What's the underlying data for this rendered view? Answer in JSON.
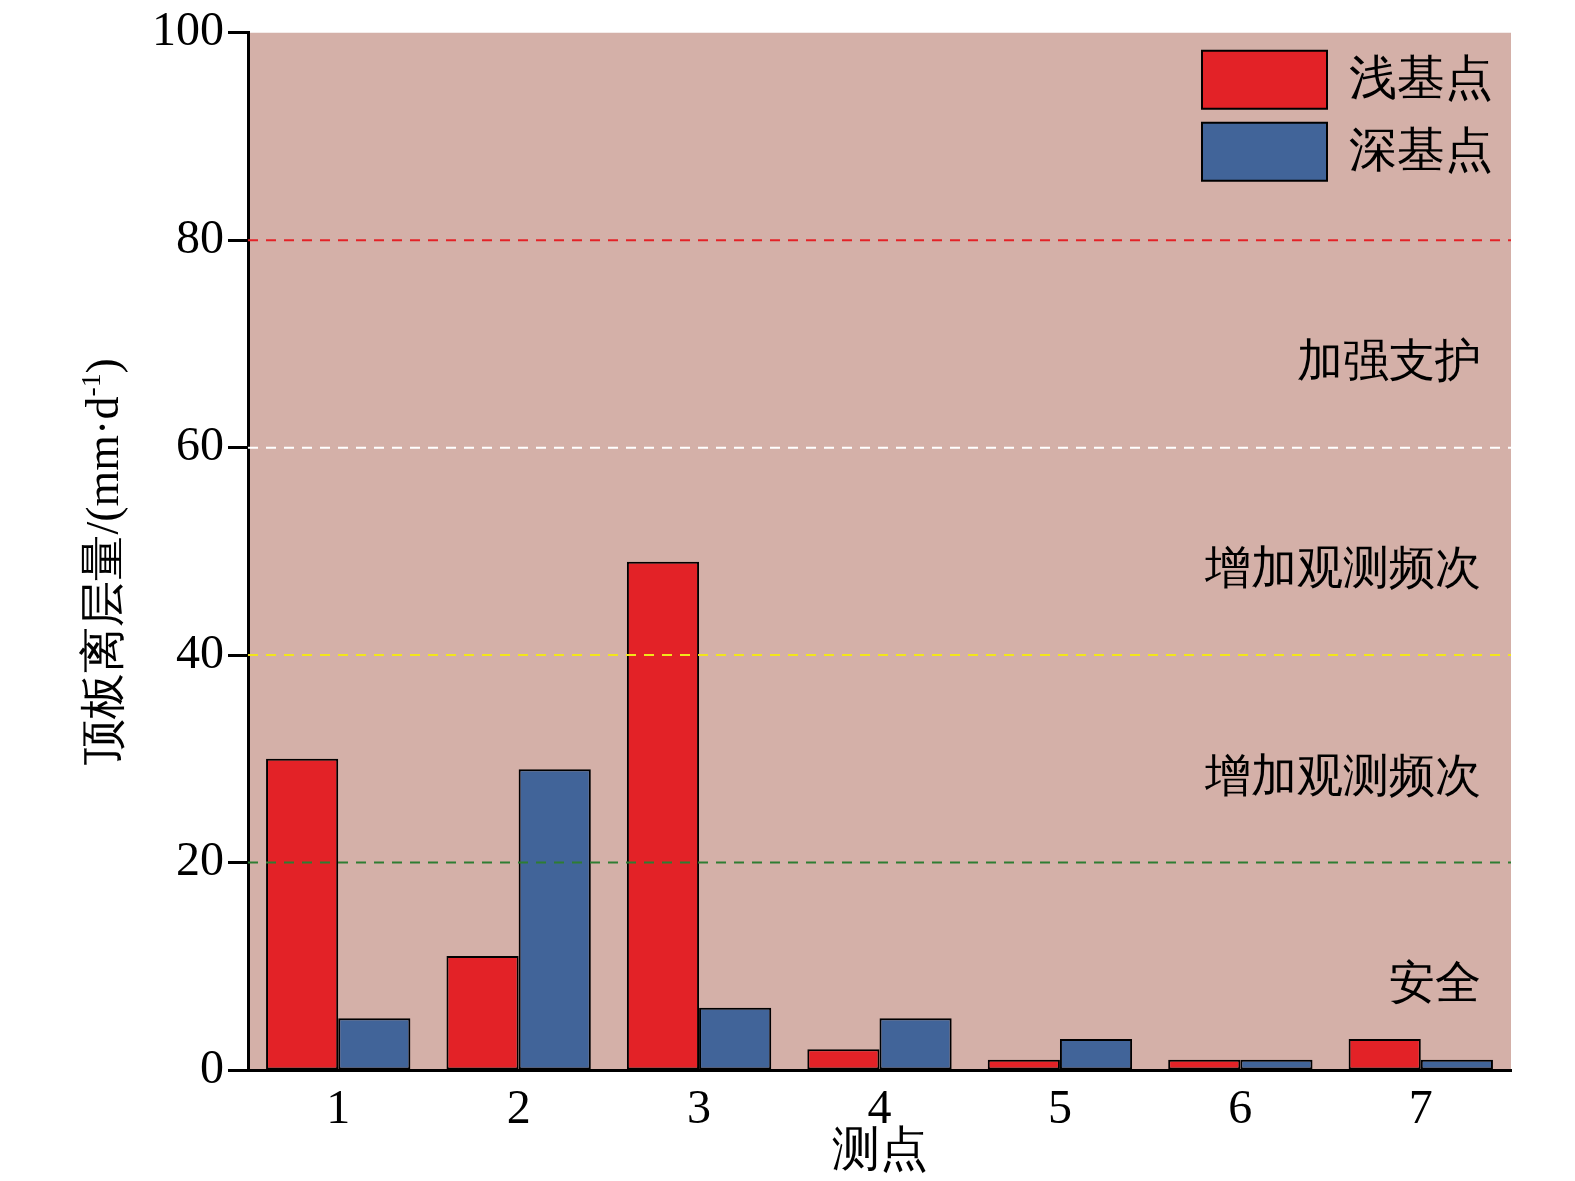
{
  "chart_data": {
    "type": "bar",
    "xlabel": "测点",
    "ylabel": "顶板离层量/(mm·d$^{-1}$)",
    "categories": [
      "1",
      "2",
      "3",
      "4",
      "5",
      "6",
      "7"
    ],
    "series": [
      {
        "name": "浅基点",
        "color": "#e32227",
        "values": [
          30,
          11,
          49,
          2,
          1,
          1,
          3
        ]
      },
      {
        "name": "深基点",
        "color": "#416499",
        "values": [
          5,
          29,
          6,
          5,
          3,
          1,
          1
        ]
      }
    ],
    "ylim": [
      0,
      100
    ],
    "yticks": [
      0,
      20,
      40,
      60,
      80,
      100
    ],
    "grid": false,
    "legend": "top right",
    "ref_lines": [
      {
        "axis": "y",
        "value": 80,
        "color": "#e32227",
        "line_style": "dashed"
      },
      {
        "axis": "y",
        "value": 60,
        "color": "#ffffff",
        "line_style": "dashed"
      },
      {
        "axis": "y",
        "value": 40,
        "color": "#f2e51c",
        "line_style": "dashed"
      },
      {
        "axis": "y",
        "value": 20,
        "color": "#2e7d32",
        "line_style": "dashed"
      }
    ],
    "annotations": [
      "加强支护",
      "增加观测频次",
      "增加观测频次",
      "安全"
    ]
  }
}
